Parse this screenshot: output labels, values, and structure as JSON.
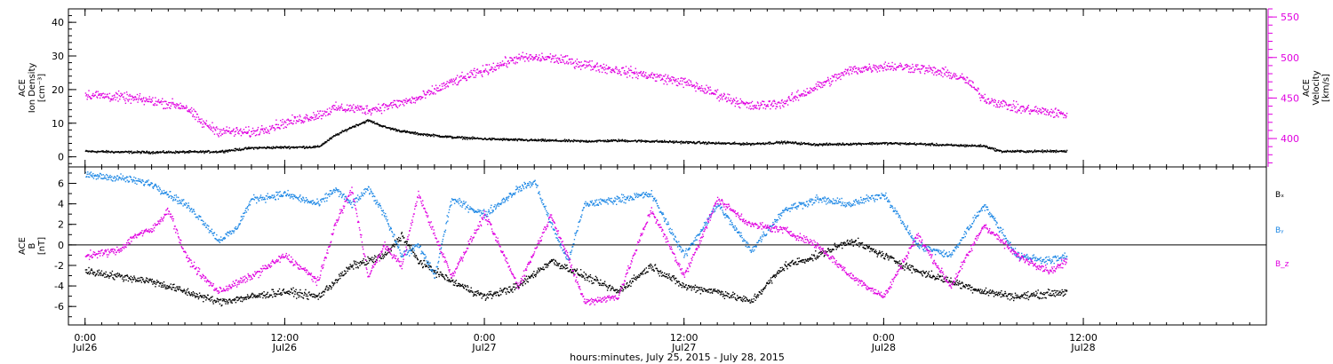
{
  "chart_data": [
    {
      "type": "scatter",
      "panel": "top",
      "left_axis": {
        "label_lines": [
          "ACE",
          "Ion Density",
          "[cm⁻³]"
        ],
        "ylim": [
          -3,
          44
        ],
        "ticks": [
          0,
          10,
          20,
          30,
          40
        ],
        "minor_step": 2
      },
      "right_axis": {
        "label_lines": [
          "ACE",
          "Velocity",
          "[km/s]"
        ],
        "ylim": [
          365,
          560
        ],
        "ticks": [
          400,
          450,
          500,
          550
        ],
        "minor_step": 10,
        "color": "#e000e0"
      },
      "series": [
        {
          "axis": "left",
          "color": "#000000",
          "values": [
            [
              0,
              1.8
            ],
            [
              2,
              1.6
            ],
            [
              4,
              1.5
            ],
            [
              6,
              1.6
            ],
            [
              8,
              1.7
            ],
            [
              10,
              2.8
            ],
            [
              12,
              3.0
            ],
            [
              14,
              3.1
            ],
            [
              15,
              6.5
            ],
            [
              16,
              9.0
            ],
            [
              17,
              11.0
            ],
            [
              18,
              9.0
            ],
            [
              19,
              7.8
            ],
            [
              20,
              7.0
            ],
            [
              22,
              6.0
            ],
            [
              24,
              5.5
            ],
            [
              26,
              5.2
            ],
            [
              28,
              5.0
            ],
            [
              30,
              4.8
            ],
            [
              32,
              5.0
            ],
            [
              34,
              4.8
            ],
            [
              36,
              4.5
            ],
            [
              38,
              4.2
            ],
            [
              40,
              4.0
            ],
            [
              42,
              4.5
            ],
            [
              44,
              3.8
            ],
            [
              46,
              4.0
            ],
            [
              48,
              4.2
            ],
            [
              50,
              4.0
            ],
            [
              52,
              3.6
            ],
            [
              54,
              3.4
            ],
            [
              55,
              1.8
            ],
            [
              57,
              1.8
            ],
            [
              59,
              1.9
            ]
          ]
        },
        {
          "axis": "right",
          "color": "#e000e0",
          "values": [
            [
              0,
              455
            ],
            [
              2,
              452
            ],
            [
              4,
              447
            ],
            [
              6,
              440
            ],
            [
              7,
              420
            ],
            [
              8,
              410
            ],
            [
              10,
              408
            ],
            [
              12,
              420
            ],
            [
              14,
              430
            ],
            [
              15,
              438
            ],
            [
              16,
              438
            ],
            [
              17,
              436
            ],
            [
              18,
              440
            ],
            [
              20,
              450
            ],
            [
              22,
              470
            ],
            [
              24,
              485
            ],
            [
              26,
              500
            ],
            [
              28,
              500
            ],
            [
              30,
              492
            ],
            [
              32,
              485
            ],
            [
              34,
              478
            ],
            [
              36,
              470
            ],
            [
              38,
              455
            ],
            [
              40,
              440
            ],
            [
              42,
              445
            ],
            [
              44,
              465
            ],
            [
              46,
              485
            ],
            [
              48,
              490
            ],
            [
              50,
              488
            ],
            [
              52,
              480
            ],
            [
              53,
              472
            ],
            [
              54,
              450
            ],
            [
              56,
              438
            ],
            [
              58,
              433
            ],
            [
              59,
              430
            ]
          ]
        }
      ]
    },
    {
      "type": "scatter",
      "panel": "bottom",
      "left_axis": {
        "label_lines": [
          "ACE",
          "B",
          "[nT]"
        ],
        "ylim": [
          -7.8,
          7.6
        ],
        "ticks": [
          -6,
          -4,
          -2,
          0,
          2,
          4,
          6
        ],
        "minor_step": 1,
        "zero_line": true
      },
      "legend": [
        {
          "label": "Bₓ",
          "color": "#000000"
        },
        {
          "label": "Bᵧ",
          "color": "#1e88e5"
        },
        {
          "label": "B_z",
          "color": "#e000e0"
        }
      ],
      "series": [
        {
          "name": "Bx",
          "color": "#000000",
          "values": [
            [
              0,
              -2.5
            ],
            [
              2,
              -3.0
            ],
            [
              4,
              -3.5
            ],
            [
              6,
              -4.5
            ],
            [
              8,
              -5.5
            ],
            [
              10,
              -5.0
            ],
            [
              12,
              -4.5
            ],
            [
              14,
              -5.0
            ],
            [
              16,
              -2.0
            ],
            [
              18,
              -1.0
            ],
            [
              19,
              1.0
            ],
            [
              20,
              -1.5
            ],
            [
              22,
              -3.5
            ],
            [
              24,
              -5.0
            ],
            [
              26,
              -4.0
            ],
            [
              28,
              -1.5
            ],
            [
              30,
              -3.0
            ],
            [
              32,
              -4.5
            ],
            [
              34,
              -2.0
            ],
            [
              36,
              -4.0
            ],
            [
              38,
              -4.5
            ],
            [
              40,
              -5.5
            ],
            [
              42,
              -2.0
            ],
            [
              44,
              -1.0
            ],
            [
              46,
              0.5
            ],
            [
              48,
              -1.0
            ],
            [
              50,
              -2.5
            ],
            [
              52,
              -3.5
            ],
            [
              54,
              -4.5
            ],
            [
              56,
              -5.0
            ],
            [
              59,
              -4.5
            ]
          ]
        },
        {
          "name": "By",
          "color": "#1e88e5",
          "values": [
            [
              0,
              6.8
            ],
            [
              2,
              6.6
            ],
            [
              4,
              6.0
            ],
            [
              5,
              5.0
            ],
            [
              6,
              4.0
            ],
            [
              7,
              2.5
            ],
            [
              8,
              0.5
            ],
            [
              9,
              1.5
            ],
            [
              10,
              4.5
            ],
            [
              12,
              5.0
            ],
            [
              14,
              4.0
            ],
            [
              15,
              5.5
            ],
            [
              16,
              4.0
            ],
            [
              17,
              5.5
            ],
            [
              18,
              3.0
            ],
            [
              19,
              -1.0
            ],
            [
              20,
              0.0
            ],
            [
              21,
              -3.0
            ],
            [
              22,
              4.5
            ],
            [
              24,
              3.0
            ],
            [
              26,
              5.5
            ],
            [
              27,
              6.2
            ],
            [
              28,
              2.0
            ],
            [
              29,
              -1.5
            ],
            [
              30,
              4.0
            ],
            [
              32,
              4.5
            ],
            [
              34,
              5.0
            ],
            [
              36,
              -1.0
            ],
            [
              38,
              4.0
            ],
            [
              40,
              -0.5
            ],
            [
              42,
              3.5
            ],
            [
              44,
              4.5
            ],
            [
              46,
              4.0
            ],
            [
              48,
              5.0
            ],
            [
              50,
              0.0
            ],
            [
              52,
              -1.0
            ],
            [
              54,
              4.0
            ],
            [
              56,
              -1.0
            ],
            [
              58,
              -1.5
            ],
            [
              59,
              -1.0
            ]
          ]
        },
        {
          "name": "Bz",
          "color": "#e000e0",
          "values": [
            [
              0,
              -1.0
            ],
            [
              2,
              -0.5
            ],
            [
              3,
              1.0
            ],
            [
              4,
              1.5
            ],
            [
              5,
              3.5
            ],
            [
              6,
              -1.0
            ],
            [
              7,
              -3.0
            ],
            [
              8,
              -4.5
            ],
            [
              10,
              -3.0
            ],
            [
              12,
              -1.0
            ],
            [
              14,
              -3.5
            ],
            [
              15,
              2.0
            ],
            [
              16,
              5.5
            ],
            [
              17,
              -3.0
            ],
            [
              18,
              0.0
            ],
            [
              19,
              -2.0
            ],
            [
              20,
              5.0
            ],
            [
              22,
              -3.0
            ],
            [
              24,
              3.0
            ],
            [
              26,
              -4.0
            ],
            [
              28,
              3.0
            ],
            [
              30,
              -5.5
            ],
            [
              32,
              -5.0
            ],
            [
              34,
              3.5
            ],
            [
              36,
              -3.0
            ],
            [
              38,
              4.5
            ],
            [
              40,
              2.0
            ],
            [
              42,
              1.5
            ],
            [
              44,
              0.0
            ],
            [
              46,
              -3.0
            ],
            [
              48,
              -5.0
            ],
            [
              50,
              1.0
            ],
            [
              52,
              -4.0
            ],
            [
              54,
              2.0
            ],
            [
              56,
              -1.0
            ],
            [
              58,
              -2.5
            ],
            [
              59,
              -1.5
            ]
          ]
        }
      ]
    }
  ],
  "x_axis": {
    "unit": "hours",
    "xlim": [
      -1,
      71
    ],
    "major_ticks": [
      0,
      12,
      24,
      36,
      48,
      60
    ],
    "minor_step": 1,
    "tick_labels": [
      {
        "x": 0,
        "time": "0:00",
        "date": "Jul26"
      },
      {
        "x": 12,
        "time": "12:00",
        "date": "Jul26"
      },
      {
        "x": 24,
        "time": "0:00",
        "date": "Jul27"
      },
      {
        "x": 36,
        "time": "12:00",
        "date": "Jul27"
      },
      {
        "x": 48,
        "time": "0:00",
        "date": "Jul28"
      },
      {
        "x": 60,
        "time": "12:00",
        "date": "Jul28"
      }
    ],
    "label": "hours:minutes, July 25, 2015 - July 28, 2015"
  }
}
